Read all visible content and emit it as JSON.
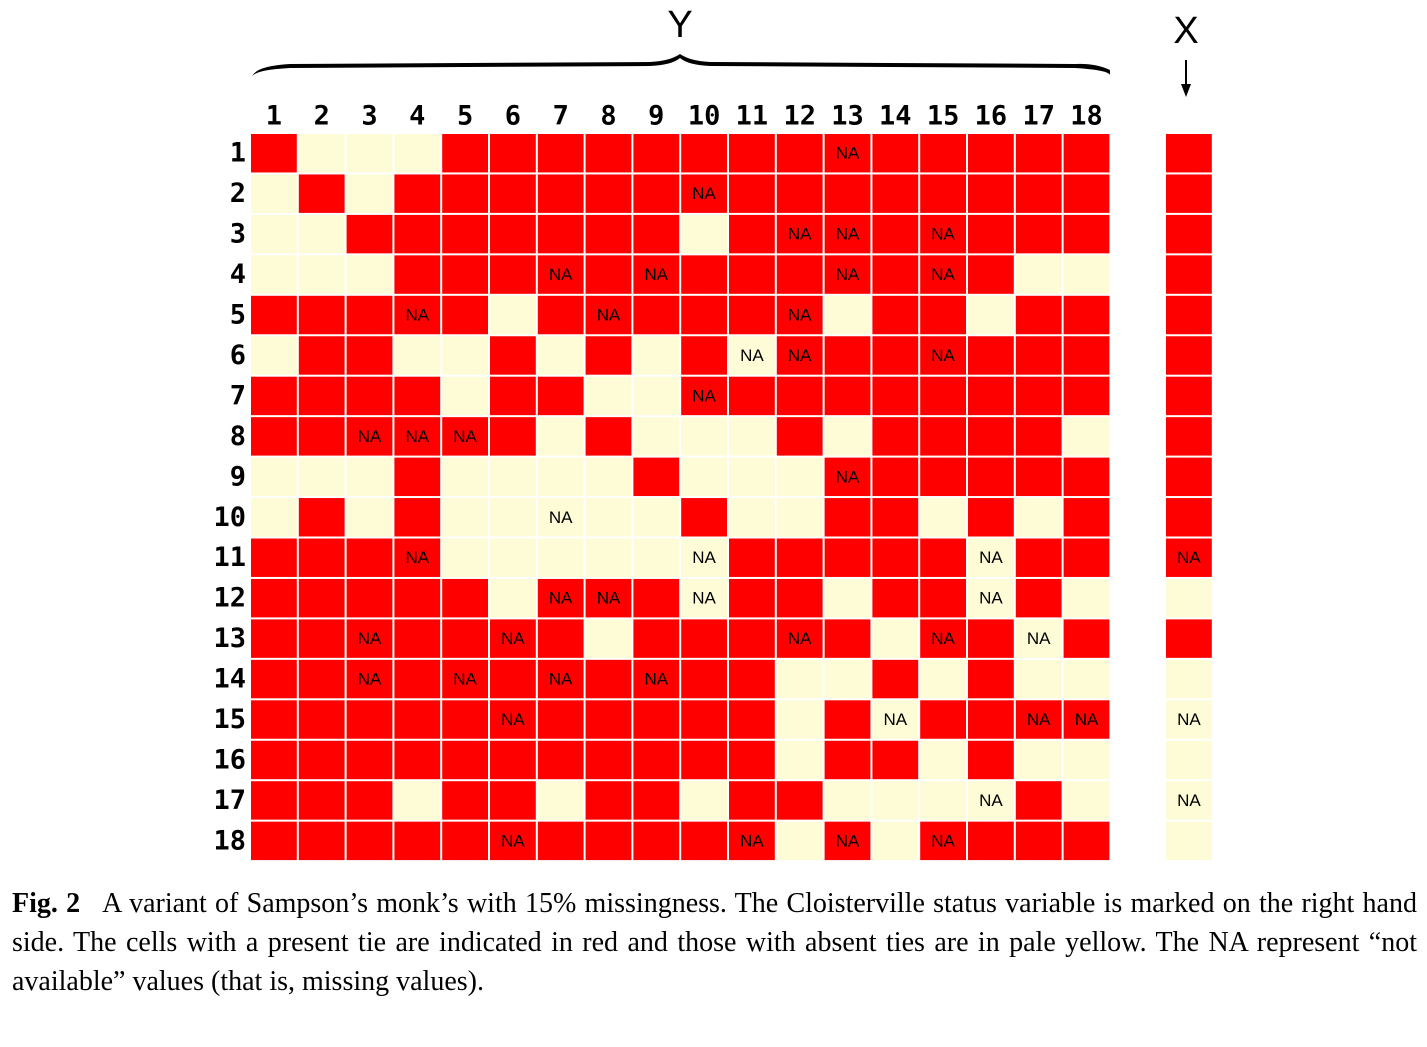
{
  "figure": {
    "y_label": "Y",
    "x_label": "X",
    "column_labels": [
      "1",
      "2",
      "3",
      "4",
      "5",
      "6",
      "7",
      "8",
      "9",
      "10",
      "11",
      "12",
      "13",
      "14",
      "15",
      "16",
      "17",
      "18"
    ],
    "row_labels": [
      "1",
      "2",
      "3",
      "4",
      "5",
      "6",
      "7",
      "8",
      "9",
      "10",
      "11",
      "12",
      "13",
      "14",
      "15",
      "16",
      "17",
      "18"
    ],
    "matrix": [
      [
        1,
        0,
        0,
        0,
        1,
        1,
        1,
        1,
        1,
        1,
        1,
        1,
        {
          "label": "NA",
          "tie": 1
        },
        1,
        1,
        1,
        1,
        1
      ],
      [
        0,
        1,
        0,
        1,
        1,
        1,
        1,
        1,
        1,
        {
          "label": "NA",
          "tie": 1
        },
        1,
        1,
        1,
        1,
        1,
        1,
        1,
        1
      ],
      [
        0,
        0,
        1,
        1,
        1,
        1,
        1,
        1,
        1,
        0,
        1,
        {
          "label": "NA",
          "tie": 1
        },
        {
          "label": "NA",
          "tie": 1
        },
        1,
        {
          "label": "NA",
          "tie": 1
        },
        1,
        1,
        1
      ],
      [
        0,
        0,
        0,
        1,
        1,
        1,
        {
          "label": "NA",
          "tie": 1
        },
        1,
        {
          "label": "NA",
          "tie": 1
        },
        1,
        1,
        1,
        {
          "label": "NA",
          "tie": 1
        },
        1,
        {
          "label": "NA",
          "tie": 1
        },
        1,
        0,
        0
      ],
      [
        1,
        1,
        1,
        {
          "label": "NA",
          "tie": 1
        },
        1,
        0,
        1,
        {
          "label": "NA",
          "tie": 1
        },
        1,
        1,
        1,
        {
          "label": "NA",
          "tie": 1
        },
        0,
        1,
        1,
        0,
        1,
        1
      ],
      [
        0,
        1,
        1,
        0,
        0,
        1,
        0,
        1,
        0,
        1,
        {
          "label": "NA",
          "tie": 0
        },
        {
          "label": "NA",
          "tie": 1
        },
        1,
        1,
        {
          "label": "NA",
          "tie": 1
        },
        1,
        1,
        1
      ],
      [
        1,
        1,
        1,
        1,
        0,
        1,
        1,
        0,
        0,
        {
          "label": "NA",
          "tie": 1
        },
        1,
        1,
        1,
        1,
        1,
        1,
        1,
        1
      ],
      [
        1,
        1,
        {
          "label": "NA",
          "tie": 1
        },
        {
          "label": "NA",
          "tie": 1
        },
        {
          "label": "NA",
          "tie": 1
        },
        1,
        0,
        1,
        0,
        0,
        0,
        1,
        0,
        1,
        1,
        1,
        1,
        0
      ],
      [
        0,
        0,
        0,
        1,
        0,
        0,
        0,
        0,
        1,
        0,
        0,
        0,
        {
          "label": "NA",
          "tie": 1
        },
        1,
        1,
        1,
        1,
        1
      ],
      [
        0,
        1,
        0,
        1,
        0,
        0,
        {
          "label": "NA",
          "tie": 0
        },
        0,
        0,
        1,
        0,
        0,
        1,
        1,
        0,
        1,
        0,
        1
      ],
      [
        1,
        1,
        1,
        {
          "label": "NA",
          "tie": 1
        },
        0,
        0,
        0,
        0,
        0,
        {
          "label": "NA",
          "tie": 0
        },
        1,
        1,
        1,
        1,
        1,
        {
          "label": "NA",
          "tie": 0
        },
        1,
        1
      ],
      [
        1,
        1,
        1,
        1,
        1,
        0,
        {
          "label": "NA",
          "tie": 1
        },
        {
          "label": "NA",
          "tie": 1
        },
        1,
        {
          "label": "NA",
          "tie": 0
        },
        1,
        1,
        0,
        1,
        1,
        {
          "label": "NA",
          "tie": 0
        },
        1,
        0
      ],
      [
        1,
        1,
        {
          "label": "NA",
          "tie": 1
        },
        1,
        1,
        {
          "label": "NA",
          "tie": 1
        },
        1,
        0,
        1,
        1,
        1,
        {
          "label": "NA",
          "tie": 1
        },
        1,
        0,
        {
          "label": "NA",
          "tie": 1
        },
        1,
        {
          "label": "NA",
          "tie": 0
        },
        1
      ],
      [
        1,
        1,
        {
          "label": "NA",
          "tie": 1
        },
        1,
        {
          "label": "NA",
          "tie": 1
        },
        1,
        {
          "label": "NA",
          "tie": 1
        },
        1,
        {
          "label": "NA",
          "tie": 1
        },
        1,
        1,
        0,
        0,
        1,
        0,
        1,
        0,
        0
      ],
      [
        1,
        1,
        1,
        1,
        1,
        {
          "label": "NA",
          "tie": 1
        },
        1,
        1,
        1,
        1,
        1,
        0,
        1,
        {
          "label": "NA",
          "tie": 0
        },
        1,
        1,
        {
          "label": "NA",
          "tie": 1
        },
        {
          "label": "NA",
          "tie": 1
        }
      ],
      [
        1,
        1,
        1,
        1,
        1,
        1,
        1,
        1,
        1,
        1,
        1,
        0,
        1,
        1,
        0,
        1,
        0,
        0
      ],
      [
        1,
        1,
        1,
        0,
        1,
        1,
        0,
        1,
        1,
        0,
        1,
        1,
        0,
        0,
        0,
        {
          "label": "NA",
          "tie": 0
        },
        1,
        0
      ],
      [
        1,
        1,
        1,
        1,
        1,
        {
          "label": "NA",
          "tie": 1
        },
        1,
        1,
        1,
        1,
        {
          "label": "NA",
          "tie": 1
        },
        0,
        {
          "label": "NA",
          "tie": 1
        },
        0,
        {
          "label": "NA",
          "tie": 1
        },
        1,
        1,
        1
      ]
    ],
    "x_column": [
      1,
      1,
      1,
      1,
      1,
      1,
      1,
      1,
      1,
      1,
      {
        "label": "NA",
        "tie": 1
      },
      0,
      1,
      0,
      {
        "label": "NA",
        "tie": 0
      },
      0,
      {
        "label": "NA",
        "tie": 0
      },
      0
    ],
    "colors": {
      "present": "#ff0000",
      "absent": "#fdfcd6"
    }
  },
  "caption": {
    "label": "Fig. 2",
    "text": "A variant of Sampson’s monk’s with 15% missingness. The Cloisterville status variable is marked on the right hand side. The cells with a present tie are indicated in red and those with absent ties are in pale yellow. The NA represent “not available” values (that is, missing values)."
  }
}
